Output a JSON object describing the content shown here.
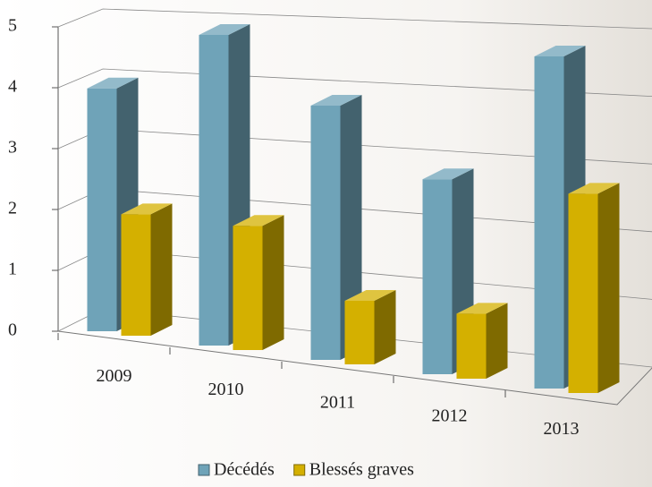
{
  "chart_data": {
    "type": "bar3d",
    "categories": [
      "2009",
      "2010",
      "2011",
      "2012",
      "2013"
    ],
    "series": [
      {
        "name": "Décédés",
        "color": "#6fa3b8",
        "values": [
          4,
          5,
          4,
          3,
          5
        ]
      },
      {
        "name": "Blessés graves",
        "color": "#d4b000",
        "values": [
          2,
          2,
          1,
          1,
          3
        ]
      }
    ],
    "ylim": [
      0,
      5
    ],
    "yticks": [
      0,
      1,
      2,
      3,
      4,
      5
    ],
    "grid": true,
    "legend": "bottom"
  }
}
